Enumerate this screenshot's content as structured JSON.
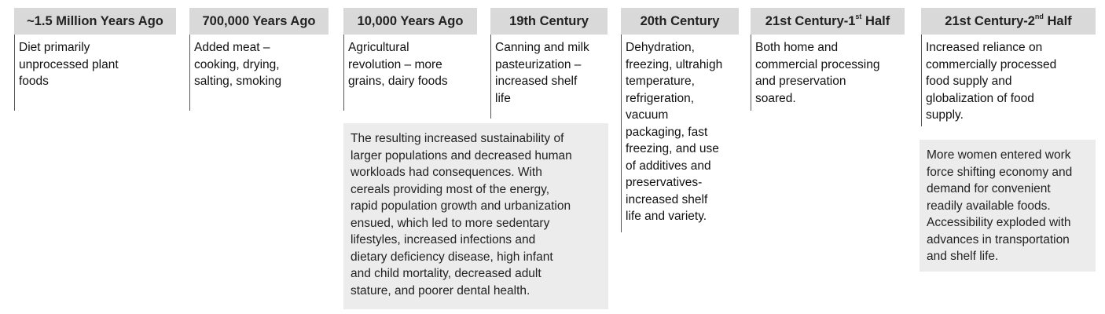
{
  "periods": [
    {
      "title": "~1.5 Million Years Ago",
      "text": "Diet primarily\nunprocessed plant\nfoods"
    },
    {
      "title": "700,000 Years Ago",
      "text": "Added meat –\ncooking, drying,\nsalting, smoking"
    },
    {
      "title": "10,000 Years Ago",
      "text": "Agricultural\nrevolution – more\ngrains, dairy foods"
    },
    {
      "title": "19th Century",
      "text": "Canning and milk\npasteurization –\nincreased shelf\nlife"
    },
    {
      "title": "20th Century",
      "text": "Dehydration,\nfreezing, ultrahigh\ntemperature,\nrefrigeration,\nvacuum\npackaging, fast\nfreezing, and use\nof additives and\npreservatives-\nincreased shelf\nlife and variety."
    },
    {
      "title_prefix": "21st Century-1",
      "title_sup": "st",
      "title_suffix": " Half",
      "text": "Both home and\ncommercial processing\nand preservation\nsoared."
    },
    {
      "title_prefix": "21st Century-2",
      "title_sup": "nd",
      "title_suffix": " Half",
      "text": "Increased reliance on\ncommercially processed\nfood supply and\nglobalization of food\nsupply."
    }
  ],
  "notes": {
    "consequences": "The resulting increased sustainability of\nlarger populations and decreased human\nworkloads had consequences. With\ncereals providing most of the energy,\nrapid population growth and urbanization\nensued, which led to more sedentary\nlifestyles, increased infections and\ndietary deficiency disease, high infant\nand child mortality, decreased adult\nstature, and poorer dental health.",
    "modern": "More women entered work\nforce shifting economy and\ndemand for convenient\nreadily available foods.\nAccessibility exploded with\nadvances in transportation\nand shelf life."
  }
}
